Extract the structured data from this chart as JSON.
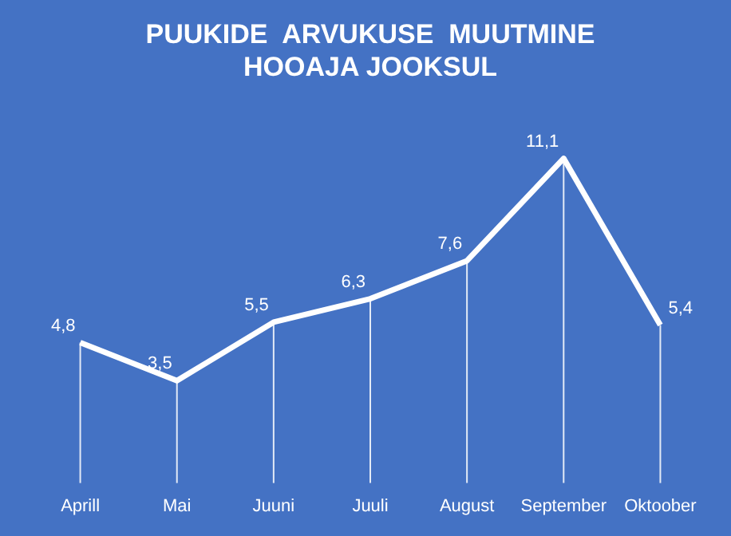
{
  "chart_data": {
    "type": "line",
    "title": "PUUKIDE  ARVUKUSE  MUUTMINE\nHOOAJA JOOKSUL",
    "categories": [
      "Aprill",
      "Mai",
      "Juuni",
      "Juuli",
      "August",
      "September",
      "Oktoober"
    ],
    "series": [
      {
        "color": "#ffffff",
        "values": [
          4.8,
          3.5,
          5.5,
          6.3,
          7.6,
          11.1,
          5.4
        ],
        "value_labels": [
          "4,8",
          "3,5",
          "5,5",
          "6,3",
          "7,6",
          "11,1",
          "5,4"
        ]
      }
    ],
    "grid": "x",
    "legend": false,
    "marker": "none",
    "line_style": "solid"
  }
}
